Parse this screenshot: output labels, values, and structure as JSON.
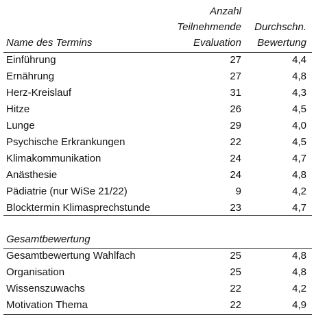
{
  "header": {
    "name": "Name des Termins",
    "count": [
      "Anzahl",
      "Teilnehmende",
      "Evaluation"
    ],
    "rating": [
      "Durchschn.",
      "Bewertung"
    ]
  },
  "table": {
    "rows": [
      [
        "Einführung",
        27,
        "4,4"
      ],
      [
        "Ernährung",
        27,
        "4,8"
      ],
      [
        "Herz-Kreislauf",
        31,
        "4,3"
      ],
      [
        "Hitze",
        26,
        "4,5"
      ],
      [
        "Lunge",
        29,
        "4,0"
      ],
      [
        "Psychische Erkrankungen",
        22,
        "4,5"
      ],
      [
        "Klimakommunikation",
        24,
        "4,7"
      ],
      [
        "Anästhesie",
        24,
        "4,8"
      ],
      [
        "Pädiatrie (nur WiSe 21/22)",
        9,
        "4,2"
      ],
      [
        "Blocktermin Klimasprechstunde",
        23,
        "4,7"
      ]
    ]
  },
  "section": {
    "title": "Gesamtbewertung",
    "rows": [
      [
        "Gesamtbewertung Wahlfach",
        25,
        "4,8"
      ],
      [
        "Organisation",
        25,
        "4,8"
      ],
      [
        "Wissenszuwachs",
        22,
        "4,2"
      ],
      [
        "Motivation Thema",
        22,
        "4,9"
      ]
    ]
  }
}
